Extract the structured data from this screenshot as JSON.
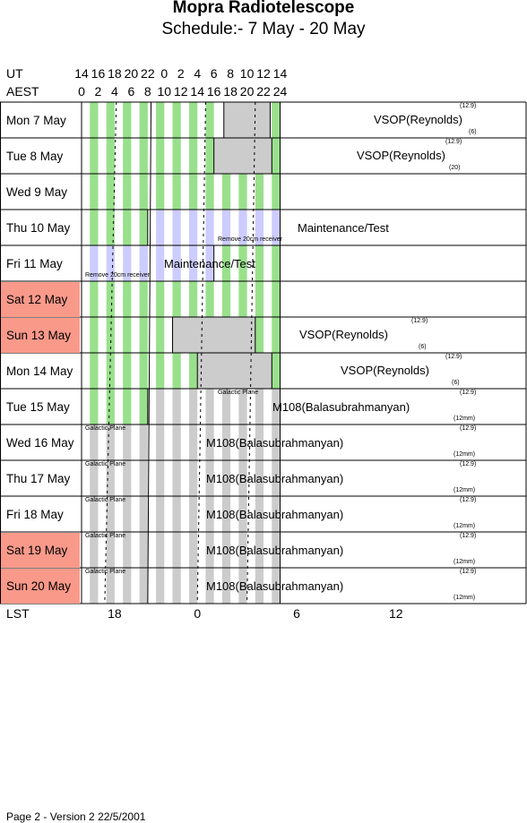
{
  "title": "Mopra Radiotelescope",
  "subtitle": "Schedule:- 7  May - 20 May",
  "header": {
    "ut_label": "UT",
    "aest_label": "AEST",
    "lst_label": "LST",
    "ut_ticks": [
      "14",
      "16",
      "18",
      "20",
      "22",
      "0",
      "2",
      "4",
      "6",
      "8",
      "10",
      "12",
      "14"
    ],
    "aest_ticks": [
      "0",
      "2",
      "4",
      "6",
      "8",
      "10",
      "12",
      "14",
      "16",
      "18",
      "20",
      "22",
      "24"
    ],
    "lst_ticks": [
      "18",
      "0",
      "6",
      "12"
    ]
  },
  "days": [
    {
      "label": "Mon  7  May",
      "weekend": false
    },
    {
      "label": "Tue   8  May",
      "weekend": false
    },
    {
      "label": "Wed  9  May",
      "weekend": false
    },
    {
      "label": "Thu  10 May",
      "weekend": false
    },
    {
      "label": "Fri    11 May",
      "weekend": false
    },
    {
      "label": "Sat   12 May",
      "weekend": true
    },
    {
      "label": "Sun  13 May",
      "weekend": true
    },
    {
      "label": "Mon  14 May",
      "weekend": false
    },
    {
      "label": "Tue   15 May",
      "weekend": false
    },
    {
      "label": "Wed  16 May",
      "weekend": false
    },
    {
      "label": "Thu  17 May",
      "weekend": false
    },
    {
      "label": "Fri    18 May",
      "weekend": false
    },
    {
      "label": "Sat   19 May",
      "weekend": true
    },
    {
      "label": "Sun  20 May",
      "weekend": true
    }
  ],
  "blocks": {
    "vsop": "VSOP(Reynolds)",
    "maint": "Maintenance/Test",
    "m108": "M108(Balasubrahmanyan)",
    "remove": "Remove 20cm receiver",
    "galactic": "Galactic Plane",
    "f12": "(12.9)",
    "f6": "(6)",
    "f20": "(20)",
    "f12mm": "(12mm)"
  },
  "footer": "Page 2 - Version 2  22/5/2001",
  "colors": {
    "green": "#99e08c",
    "grey": "#cccccc",
    "lavender": "#ccccff",
    "weekend": "#f9998a"
  }
}
